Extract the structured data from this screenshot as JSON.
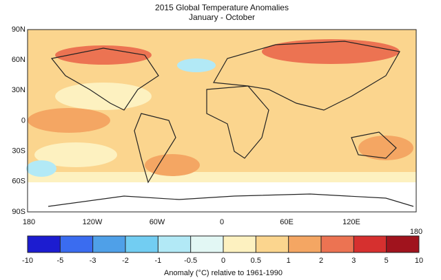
{
  "header": {
    "title": "2015 Global Temperature Anomalies",
    "subtitle": "January - October"
  },
  "map": {
    "lat_labels": [
      "90N",
      "60N",
      "30N",
      "0",
      "30S",
      "60S",
      "90S"
    ],
    "lon_labels": [
      "180",
      "120W",
      "60W",
      "0",
      "60E",
      "120E",
      "180"
    ]
  },
  "legend": {
    "ticks": [
      -10,
      -5,
      -3,
      -2,
      -1,
      -0.5,
      0,
      0.5,
      1,
      2,
      3,
      5,
      10
    ],
    "colors": [
      "#1c1cd0",
      "#3a6cf0",
      "#4fa0e8",
      "#72cdf2",
      "#b2e9f6",
      "#e2f7f4",
      "#fdf1c0",
      "#fbd58e",
      "#f4a663",
      "#ec7352",
      "#d6302f",
      "#a0131d"
    ],
    "label": "Anomaly (°C) relative to 1961-1990"
  }
}
